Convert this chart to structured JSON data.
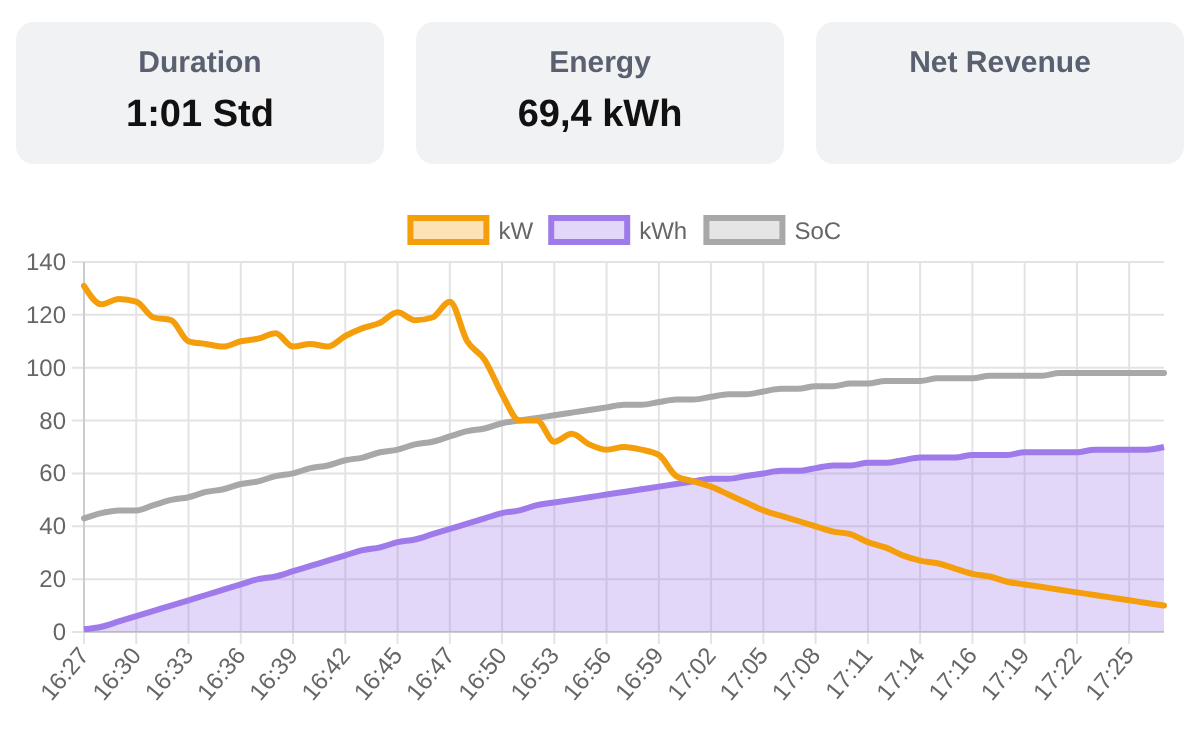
{
  "chart_data": [
    {
      "type": "other",
      "title": "Duration",
      "annotations": [
        "1:01 Std"
      ]
    },
    {
      "type": "other",
      "title": "Energy",
      "annotations": [
        "69,4 kWh"
      ]
    },
    {
      "type": "other",
      "title": "Net Revenue"
    },
    {
      "type": "line",
      "categories": [
        "16:27",
        null,
        null,
        "16:30",
        null,
        null,
        "16:33",
        null,
        null,
        "16:36",
        null,
        null,
        "16:39",
        null,
        null,
        "16:42",
        null,
        null,
        "16:45",
        null,
        null,
        "16:47",
        null,
        null,
        "16:50",
        null,
        null,
        "16:53",
        null,
        null,
        "16:56",
        null,
        null,
        "16:59",
        null,
        null,
        "17:02",
        null,
        null,
        "17:05",
        null,
        null,
        "17:08",
        null,
        null,
        "17:11",
        null,
        null,
        "17:14",
        null,
        null,
        "17:16",
        null,
        null,
        "17:19",
        null,
        null,
        "17:22",
        null,
        null,
        "17:25",
        null,
        null
      ],
      "series": [
        {
          "name": "kW",
          "color": "#f59e0b",
          "values": [
            131,
            124,
            126,
            125,
            119,
            118,
            110,
            109,
            108,
            110,
            111,
            113,
            108,
            109,
            108,
            112,
            115,
            117,
            121,
            118,
            119,
            125,
            110,
            103,
            90,
            80,
            80,
            72,
            75,
            71,
            69,
            70,
            69,
            67,
            59,
            57,
            55,
            52,
            49,
            46,
            44,
            42,
            40,
            38,
            37,
            34,
            32,
            29,
            27,
            26,
            24,
            22,
            21,
            19,
            18,
            17,
            16,
            15,
            14,
            13,
            12,
            11,
            10
          ]
        },
        {
          "name": "kWh",
          "type": "area",
          "color": "#9f7aea",
          "values": [
            1,
            2,
            4,
            6,
            8,
            10,
            12,
            14,
            16,
            18,
            20,
            21,
            23,
            25,
            27,
            29,
            31,
            32,
            34,
            35,
            37,
            39,
            41,
            43,
            45,
            46,
            48,
            49,
            50,
            51,
            52,
            53,
            54,
            55,
            56,
            57,
            58,
            58,
            59,
            60,
            61,
            61,
            62,
            63,
            63,
            64,
            64,
            65,
            66,
            66,
            66,
            67,
            67,
            67,
            68,
            68,
            68,
            68,
            69,
            69,
            69,
            69,
            70
          ]
        },
        {
          "name": "SoC",
          "color": "#a8a8a8",
          "values": [
            43,
            45,
            46,
            46,
            48,
            50,
            51,
            53,
            54,
            56,
            57,
            59,
            60,
            62,
            63,
            65,
            66,
            68,
            69,
            71,
            72,
            74,
            76,
            77,
            79,
            80,
            81,
            82,
            83,
            84,
            85,
            86,
            86,
            87,
            88,
            88,
            89,
            90,
            90,
            91,
            92,
            92,
            93,
            93,
            94,
            94,
            95,
            95,
            95,
            96,
            96,
            96,
            97,
            97,
            97,
            97,
            98,
            98,
            98,
            98,
            98,
            98,
            98
          ]
        }
      ],
      "ylim": [
        0,
        140
      ],
      "yticks": [
        0,
        20,
        40,
        60,
        80,
        100,
        120,
        140
      ],
      "grid": true,
      "legend": "top"
    }
  ]
}
